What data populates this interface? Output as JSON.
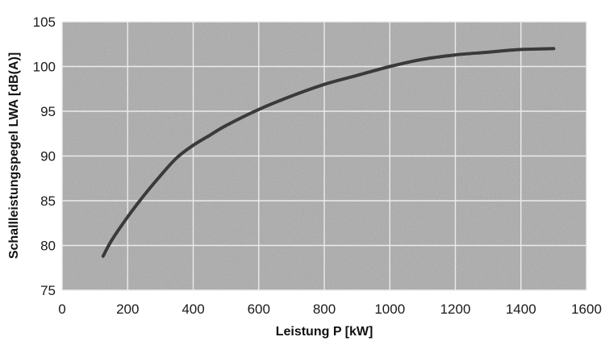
{
  "chart_data": {
    "type": "line",
    "title": "",
    "xlabel": "Leistung P [kW]",
    "ylabel": "Schallleistungspegel LWA [dB(A)]",
    "xlim": [
      0,
      1600
    ],
    "ylim": [
      75,
      105
    ],
    "xticks": [
      0,
      200,
      400,
      600,
      800,
      1000,
      1200,
      1400,
      1600
    ],
    "yticks": [
      75,
      80,
      85,
      90,
      95,
      100,
      105
    ],
    "grid": true,
    "legend": "none",
    "colors": {
      "plot_background": "#a9a9a9",
      "grid": "#ebebeb",
      "line": "#3a3a3a",
      "text": "#1a1a1a"
    },
    "series": [
      {
        "x": [
          125,
          150,
          200,
          250,
          300,
          350,
          400,
          450,
          500,
          600,
          700,
          800,
          900,
          1000,
          1100,
          1200,
          1300,
          1400,
          1500
        ],
        "y": [
          78.8,
          80.5,
          83.2,
          85.6,
          87.8,
          89.8,
          91.2,
          92.3,
          93.4,
          95.2,
          96.7,
          98.0,
          99.0,
          100.0,
          100.8,
          101.3,
          101.6,
          101.9,
          102.0
        ]
      }
    ]
  }
}
